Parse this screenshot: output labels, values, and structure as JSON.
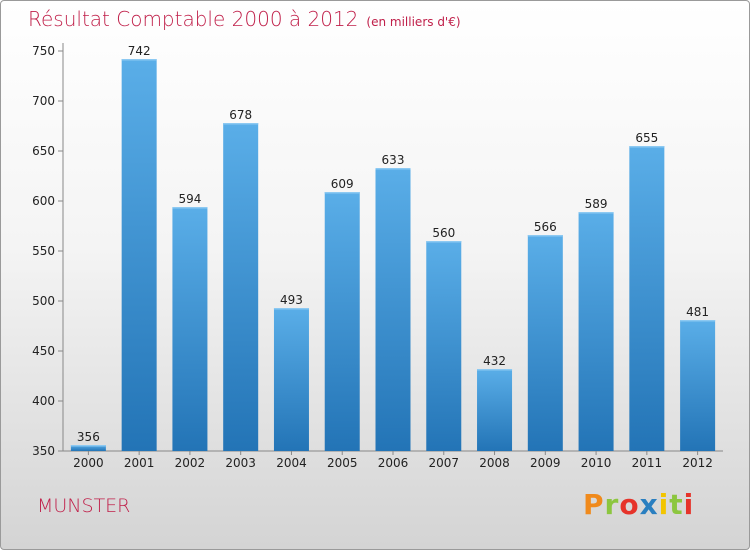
{
  "header": {
    "title": "Résultat Comptable 2000 à 2012",
    "unit": "(en milliers d'€)"
  },
  "footer": {
    "city": "MUNSTER",
    "logo": "Proxiti",
    "logo_colors": [
      "#f08a1c",
      "#8cc63f",
      "#e6332a",
      "#2a7fc0",
      "#f2c500",
      "#8cc63f",
      "#e6332a"
    ]
  },
  "colors": {
    "title": "#c0204a",
    "bar_light": "#5aaee8",
    "bar_dark": "#2374b6"
  },
  "chart_data": {
    "type": "bar",
    "title": "Résultat Comptable 2000 à 2012",
    "categories": [
      "2000",
      "2001",
      "2002",
      "2003",
      "2004",
      "2005",
      "2006",
      "2007",
      "2008",
      "2009",
      "2010",
      "2011",
      "2012"
    ],
    "values": [
      356,
      742,
      594,
      678,
      493,
      609,
      633,
      560,
      432,
      566,
      589,
      655,
      481
    ],
    "ylim": [
      350,
      750
    ],
    "yticks": [
      350,
      400,
      450,
      500,
      550,
      600,
      650,
      700,
      750
    ],
    "grid": false
  }
}
